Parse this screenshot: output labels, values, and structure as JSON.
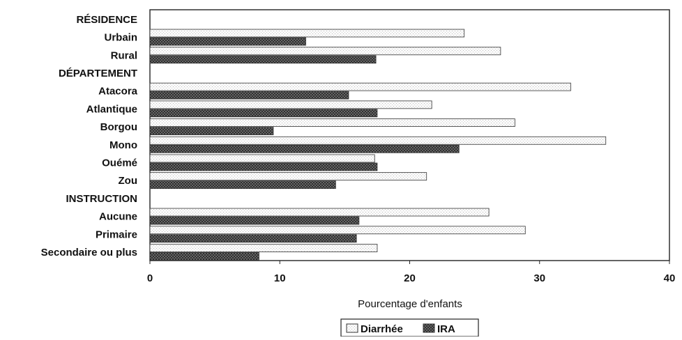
{
  "chart_data": {
    "type": "bar",
    "orientation": "horizontal",
    "xlabel": "Pourcentage d'enfants",
    "xlim": [
      0,
      40
    ],
    "xticks": [
      0,
      10,
      20,
      30,
      40
    ],
    "grid": false,
    "legend_position": "bottom-center",
    "rows": [
      {
        "label": "RÉSIDENCE",
        "group_header": true
      },
      {
        "label": "Urbain",
        "group_header": false
      },
      {
        "label": "Rural",
        "group_header": false
      },
      {
        "label": "DÉPARTEMENT",
        "group_header": true
      },
      {
        "label": "Atacora",
        "group_header": false
      },
      {
        "label": "Atlantique",
        "group_header": false
      },
      {
        "label": "Borgou",
        "group_header": false
      },
      {
        "label": "Mono",
        "group_header": false
      },
      {
        "label": "Ouémé",
        "group_header": false
      },
      {
        "label": "Zou",
        "group_header": false
      },
      {
        "label": "INSTRUCTION",
        "group_header": true
      },
      {
        "label": "Aucune",
        "group_header": false
      },
      {
        "label": "Primaire",
        "group_header": false
      },
      {
        "label": "Secondaire ou plus",
        "group_header": false
      }
    ],
    "series": [
      {
        "name": "Diarrhée",
        "color": "#f4f4f4",
        "pattern": "light-stipple",
        "values": [
          null,
          24.2,
          27.0,
          null,
          32.4,
          21.7,
          28.1,
          35.1,
          17.3,
          21.3,
          null,
          26.1,
          28.9,
          17.5
        ]
      },
      {
        "name": "IRA",
        "color": "#5a5a5a",
        "pattern": "dark-crosshatch",
        "values": [
          null,
          12.0,
          17.4,
          null,
          15.3,
          17.5,
          9.5,
          23.8,
          17.5,
          14.3,
          null,
          16.1,
          15.9,
          8.4
        ]
      }
    ]
  }
}
